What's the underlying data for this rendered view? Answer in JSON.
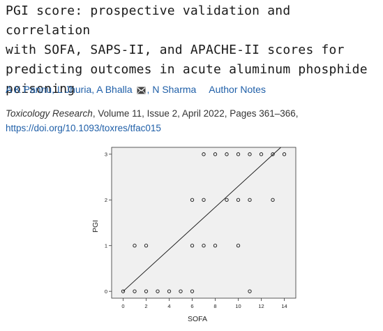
{
  "article": {
    "title_lines": [
      "PGI score: prospective validation and correlation",
      "with SOFA, SAPS-II, and APACHE-II scores for",
      "predicting outcomes in acute aluminum phosphide",
      "poisoning"
    ],
    "authors": [
      "A K Pannu",
      "L Jhuria",
      "A Bhalla",
      "N Sharma"
    ],
    "separator": ", ",
    "author_notes_label": "Author Notes",
    "journal": "Toxicology Research",
    "citation_rest": ", Volume 11, Issue 2, April 2022, Pages 361–366,",
    "doi": "https://doi.org/10.1093/toxres/tfac015",
    "link_color": "#1f5fa8"
  },
  "chart_data": {
    "type": "scatter",
    "xlabel": "SOFA",
    "ylabel": "PGI",
    "xlim": [
      -1,
      15
    ],
    "ylim": [
      -0.15,
      3.15
    ],
    "xticks": [
      0,
      2,
      4,
      6,
      8,
      10,
      12,
      14
    ],
    "yticks": [
      0,
      1,
      2,
      3
    ],
    "grid": false,
    "points": [
      {
        "x": 0,
        "y": 0
      },
      {
        "x": 1,
        "y": 0
      },
      {
        "x": 2,
        "y": 0
      },
      {
        "x": 3,
        "y": 0
      },
      {
        "x": 4,
        "y": 0
      },
      {
        "x": 5,
        "y": 0
      },
      {
        "x": 6,
        "y": 0
      },
      {
        "x": 11,
        "y": 0
      },
      {
        "x": 1,
        "y": 1
      },
      {
        "x": 2,
        "y": 1
      },
      {
        "x": 6,
        "y": 1
      },
      {
        "x": 7,
        "y": 1
      },
      {
        "x": 8,
        "y": 1
      },
      {
        "x": 10,
        "y": 1
      },
      {
        "x": 6,
        "y": 2
      },
      {
        "x": 7,
        "y": 2
      },
      {
        "x": 9,
        "y": 2
      },
      {
        "x": 10,
        "y": 2
      },
      {
        "x": 11,
        "y": 2
      },
      {
        "x": 13,
        "y": 2
      },
      {
        "x": 7,
        "y": 3
      },
      {
        "x": 8,
        "y": 3
      },
      {
        "x": 9,
        "y": 3
      },
      {
        "x": 10,
        "y": 3
      },
      {
        "x": 11,
        "y": 3
      },
      {
        "x": 12,
        "y": 3
      },
      {
        "x": 13,
        "y": 3
      },
      {
        "x": 14,
        "y": 3
      }
    ],
    "fit_line": {
      "x": [
        0,
        13.7
      ],
      "y": [
        0,
        3.15
      ]
    }
  }
}
